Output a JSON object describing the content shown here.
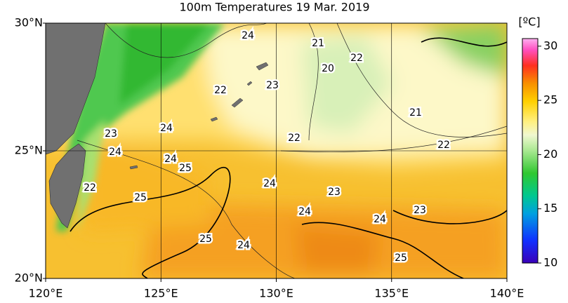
{
  "header": {
    "title": "100m Temperatures  19 Mar. 2019"
  },
  "map": {
    "xlim": [
      120,
      140
    ],
    "ylim": [
      20,
      30
    ],
    "xticks": [
      {
        "value": 120,
        "label": "120°E"
      },
      {
        "value": 125,
        "label": "125°E"
      },
      {
        "value": 130,
        "label": "130°E"
      },
      {
        "value": 135,
        "label": "135°E"
      },
      {
        "value": 140,
        "label": "140°E"
      }
    ],
    "yticks": [
      {
        "value": 20,
        "label": "20°N"
      },
      {
        "value": 25,
        "label": "25°N"
      },
      {
        "value": 30,
        "label": "30°N"
      }
    ]
  },
  "colorbar": {
    "unit": "[ºC]",
    "lim": [
      10,
      30.7
    ],
    "ticks": [
      10,
      15,
      20,
      25,
      30
    ]
  },
  "contour_labels": [
    "24",
    "21",
    "22",
    "20",
    "23",
    "22",
    "21",
    "24",
    "23",
    "22",
    "22",
    "24",
    "24",
    "25",
    "22",
    "24",
    "23",
    "25",
    "24",
    "23",
    "24",
    "25",
    "24",
    "25"
  ]
}
